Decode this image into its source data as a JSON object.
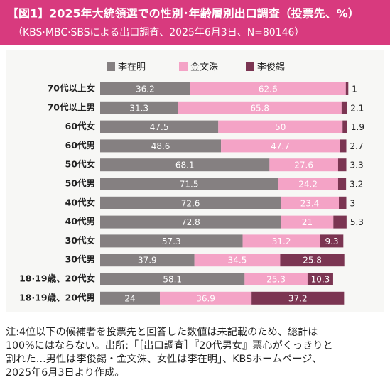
{
  "chart_data": {
    "type": "stacked-bar-horizontal",
    "title": "【図1】2025年大統領選での性別･年齢層別出口調査（投票先、%）",
    "subtitle": "（KBS·MBC·SBSによる出口調査、2025年6月3日、N=80146）",
    "categories": [
      "70代以上女",
      "70代以上男",
      "60代女",
      "60代男",
      "50代女",
      "50代男",
      "40代女",
      "40代男",
      "30代女",
      "30代男",
      "18·19歳、20代女",
      "18·19歳、20代男"
    ],
    "series": [
      {
        "name": "李在明",
        "color": "#858081",
        "values": [
          36.2,
          31.3,
          47.5,
          48.6,
          68.1,
          71.5,
          72.6,
          72.8,
          57.3,
          37.9,
          58.1,
          24
        ]
      },
      {
        "name": "金文洙",
        "color": "#f4a3c6",
        "values": [
          62.6,
          65.8,
          50,
          47.7,
          27.6,
          24.2,
          23.4,
          21,
          31.2,
          34.5,
          25.3,
          36.9
        ]
      },
      {
        "name": "李俊錫",
        "color": "#7b3552",
        "values": [
          1,
          2.1,
          1.9,
          2.7,
          3.3,
          3.2,
          3,
          5.3,
          9.3,
          25.8,
          10.3,
          37.2
        ]
      }
    ],
    "notes": [
      "注:4位以下の候補者を投票先と回答した数値は未記載のため、総計は",
      "100%にはならない。出所:「［出口調査］『20代男女』票心がくっきりと",
      "割れた…男性は李俊錫・金文洙、女性は李在明」、KBSホームページ、",
      "2025年6月3日より作成。"
    ]
  }
}
